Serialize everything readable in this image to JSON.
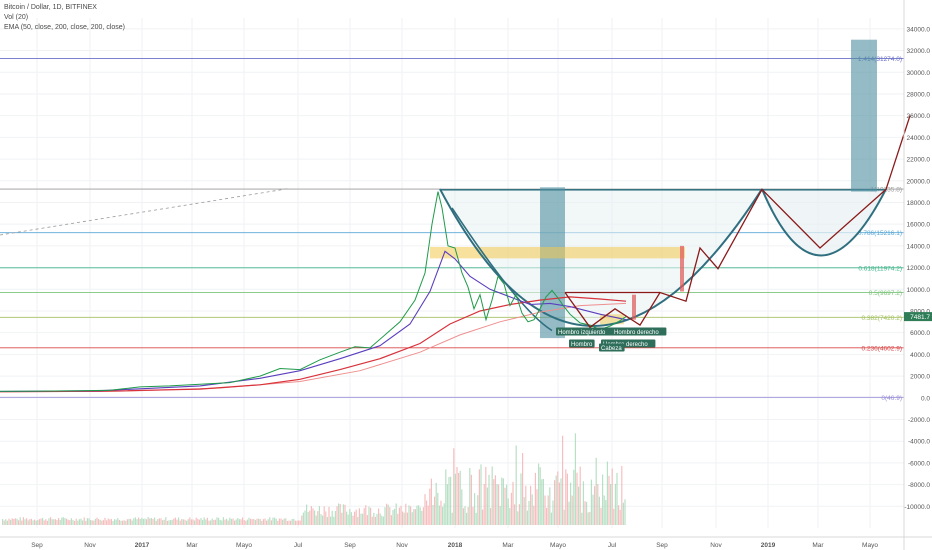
{
  "legend": {
    "symbol_line": "Bitcoin / Dollar, 1D, BITFINEX",
    "volume_line": "Vol (20)",
    "ema_line": "EMA (50, close, 200, close, 200, close)"
  },
  "colors": {
    "price": "#1f9a4a",
    "ema50": "#5b3fbf",
    "ema200": "#d8323a",
    "ema200b": "#ef8f8f",
    "cup": "#2f6f7f",
    "projection": "#8b1a1a",
    "box": "#4f8fa0",
    "highlight": "#f2c94c"
  },
  "chart_data": {
    "type": "line",
    "x_ticks": [
      "Sep",
      "Nov",
      "2017",
      "Mar",
      "Mayo",
      "Jul",
      "Sep",
      "Nov",
      "2018",
      "Mar",
      "Mayo",
      "Jul",
      "Sep",
      "Nov",
      "2019",
      "Mar",
      "Mayo"
    ],
    "y_ticks": [
      "34000.0",
      "32000.0",
      "30000.0",
      "28000.0",
      "26000.0",
      "24000.0",
      "22000.0",
      "20000.0",
      "18000.0",
      "16000.0",
      "14000.0",
      "12000.0",
      "10000.0",
      "8000.0",
      "6000.0",
      "4000.0",
      "2000.0",
      "0.0",
      "-2000.0",
      "-4000.0",
      "-6000.0",
      "-8000.0",
      "-10000.0"
    ],
    "ylim": [
      -12000,
      35000
    ],
    "current_price_label": "7481.7",
    "fib_levels": [
      {
        "label": "1.414(31274.0)",
        "value": 31274,
        "color": "#6b6fc8"
      },
      {
        "label": "1(19235.8)",
        "value": 19236,
        "color": "#9a9a9a"
      },
      {
        "label": "0.786(15216.1)",
        "value": 15216,
        "color": "#5aa7d6"
      },
      {
        "label": "0.618(11974.2)",
        "value": 11974,
        "color": "#3fb58a"
      },
      {
        "label": "0.5(9697.2)",
        "value": 9697,
        "color": "#7cc57c"
      },
      {
        "label": "0.382(7420.2)",
        "value": 7420,
        "color": "#a3c060"
      },
      {
        "label": "0.236(4602.9)",
        "value": 4603,
        "color": "#d94848"
      },
      {
        "label": "0(46.9)",
        "value": 47,
        "color": "#9a8fd8"
      }
    ],
    "price_series": {
      "name": "",
      "points": [
        [
          0,
          600
        ],
        [
          40,
          620
        ],
        [
          80,
          650
        ],
        [
          110,
          700
        ],
        [
          140,
          1000
        ],
        [
          170,
          1100
        ],
        [
          200,
          1250
        ],
        [
          230,
          1400
        ],
        [
          260,
          2000
        ],
        [
          280,
          2700
        ],
        [
          300,
          2600
        ],
        [
          320,
          3500
        ],
        [
          340,
          4200
        ],
        [
          355,
          4700
        ],
        [
          370,
          4600
        ],
        [
          385,
          5800
        ],
        [
          400,
          7000
        ],
        [
          415,
          9000
        ],
        [
          425,
          11500
        ],
        [
          432,
          16000
        ],
        [
          438,
          19000
        ],
        [
          442,
          17500
        ],
        [
          448,
          14000
        ],
        [
          455,
          13800
        ],
        [
          462,
          11500
        ],
        [
          468,
          10200
        ],
        [
          474,
          8200
        ],
        [
          480,
          9500
        ],
        [
          486,
          7200
        ],
        [
          492,
          9000
        ],
        [
          498,
          11200
        ],
        [
          504,
          10500
        ],
        [
          510,
          8500
        ],
        [
          516,
          9500
        ],
        [
          522,
          7800
        ],
        [
          528,
          7000
        ],
        [
          534,
          7200
        ],
        [
          540,
          8200
        ],
        [
          546,
          9300
        ],
        [
          552,
          9900
        ],
        [
          558,
          9200
        ],
        [
          564,
          8400
        ],
        [
          570,
          7700
        ],
        [
          580,
          6900
        ],
        [
          590,
          6700
        ],
        [
          600,
          6300
        ],
        [
          610,
          6600
        ],
        [
          620,
          7100
        ],
        [
          626,
          7480
        ]
      ]
    },
    "ema50_series": {
      "name": "",
      "points": [
        [
          0,
          580
        ],
        [
          100,
          650
        ],
        [
          200,
          1100
        ],
        [
          260,
          1800
        ],
        [
          300,
          2500
        ],
        [
          340,
          3600
        ],
        [
          380,
          4800
        ],
        [
          410,
          6800
        ],
        [
          430,
          9800
        ],
        [
          445,
          13500
        ],
        [
          455,
          12800
        ],
        [
          470,
          11200
        ],
        [
          490,
          10000
        ],
        [
          510,
          9300
        ],
        [
          530,
          8600
        ],
        [
          550,
          8700
        ],
        [
          570,
          8400
        ],
        [
          600,
          7700
        ],
        [
          626,
          7200
        ]
      ]
    },
    "ema200_series": {
      "name": "",
      "points": [
        [
          0,
          560
        ],
        [
          100,
          600
        ],
        [
          200,
          800
        ],
        [
          260,
          1200
        ],
        [
          300,
          1700
        ],
        [
          340,
          2600
        ],
        [
          380,
          3600
        ],
        [
          420,
          5000
        ],
        [
          450,
          6800
        ],
        [
          480,
          8000
        ],
        [
          510,
          8600
        ],
        [
          540,
          9000
        ],
        [
          570,
          9300
        ],
        [
          600,
          9100
        ],
        [
          626,
          8900
        ]
      ]
    },
    "ema200b_series": {
      "name": "",
      "points": [
        [
          0,
          540
        ],
        [
          120,
          600
        ],
        [
          220,
          900
        ],
        [
          300,
          1500
        ],
        [
          360,
          2500
        ],
        [
          420,
          4200
        ],
        [
          460,
          5800
        ],
        [
          500,
          7000
        ],
        [
          540,
          7900
        ],
        [
          580,
          8500
        ],
        [
          626,
          8700
        ]
      ]
    },
    "volume_bars_seed": 7,
    "annotations": {
      "left_shoulder": "Hombro izquierdo",
      "right_shoulder": "Hombro derecho",
      "head": "Cabeza",
      "neckline_left": "Hombro",
      "neckline_right": "Hombro derecho"
    }
  }
}
